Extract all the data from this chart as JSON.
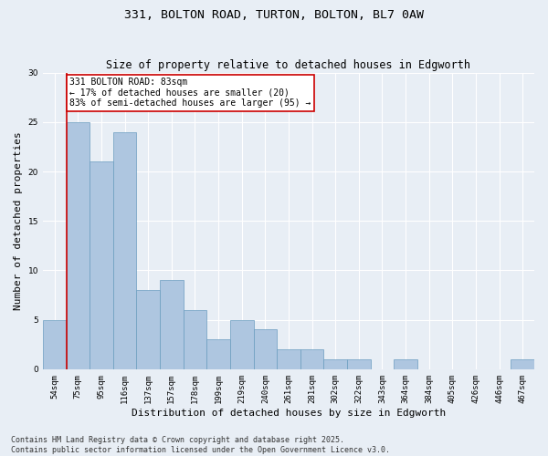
{
  "title_line1": "331, BOLTON ROAD, TURTON, BOLTON, BL7 0AW",
  "title_line2": "Size of property relative to detached houses in Edgworth",
  "xlabel": "Distribution of detached houses by size in Edgworth",
  "ylabel": "Number of detached properties",
  "categories": [
    "54sqm",
    "75sqm",
    "95sqm",
    "116sqm",
    "137sqm",
    "157sqm",
    "178sqm",
    "199sqm",
    "219sqm",
    "240sqm",
    "261sqm",
    "281sqm",
    "302sqm",
    "322sqm",
    "343sqm",
    "364sqm",
    "384sqm",
    "405sqm",
    "426sqm",
    "446sqm",
    "467sqm"
  ],
  "values": [
    5,
    25,
    21,
    24,
    8,
    9,
    6,
    3,
    5,
    4,
    2,
    2,
    1,
    1,
    0,
    1,
    0,
    0,
    0,
    0,
    1
  ],
  "bar_color": "#aec6e0",
  "bar_edge_color": "#6a9cbf",
  "background_color": "#e8eef5",
  "grid_color": "#ffffff",
  "ylim": [
    0,
    30
  ],
  "yticks": [
    0,
    5,
    10,
    15,
    20,
    25,
    30
  ],
  "property_line_color": "#cc0000",
  "annotation_text": "331 BOLTON ROAD: 83sqm\n← 17% of detached houses are smaller (20)\n83% of semi-detached houses are larger (95) →",
  "annotation_box_color": "#ffffff",
  "annotation_box_edge_color": "#cc0000",
  "footer_line1": "Contains HM Land Registry data © Crown copyright and database right 2025.",
  "footer_line2": "Contains public sector information licensed under the Open Government Licence v3.0.",
  "title_fontsize": 9.5,
  "subtitle_fontsize": 8.5,
  "tick_fontsize": 6.5,
  "label_fontsize": 8,
  "footer_fontsize": 6,
  "annotation_fontsize": 7
}
